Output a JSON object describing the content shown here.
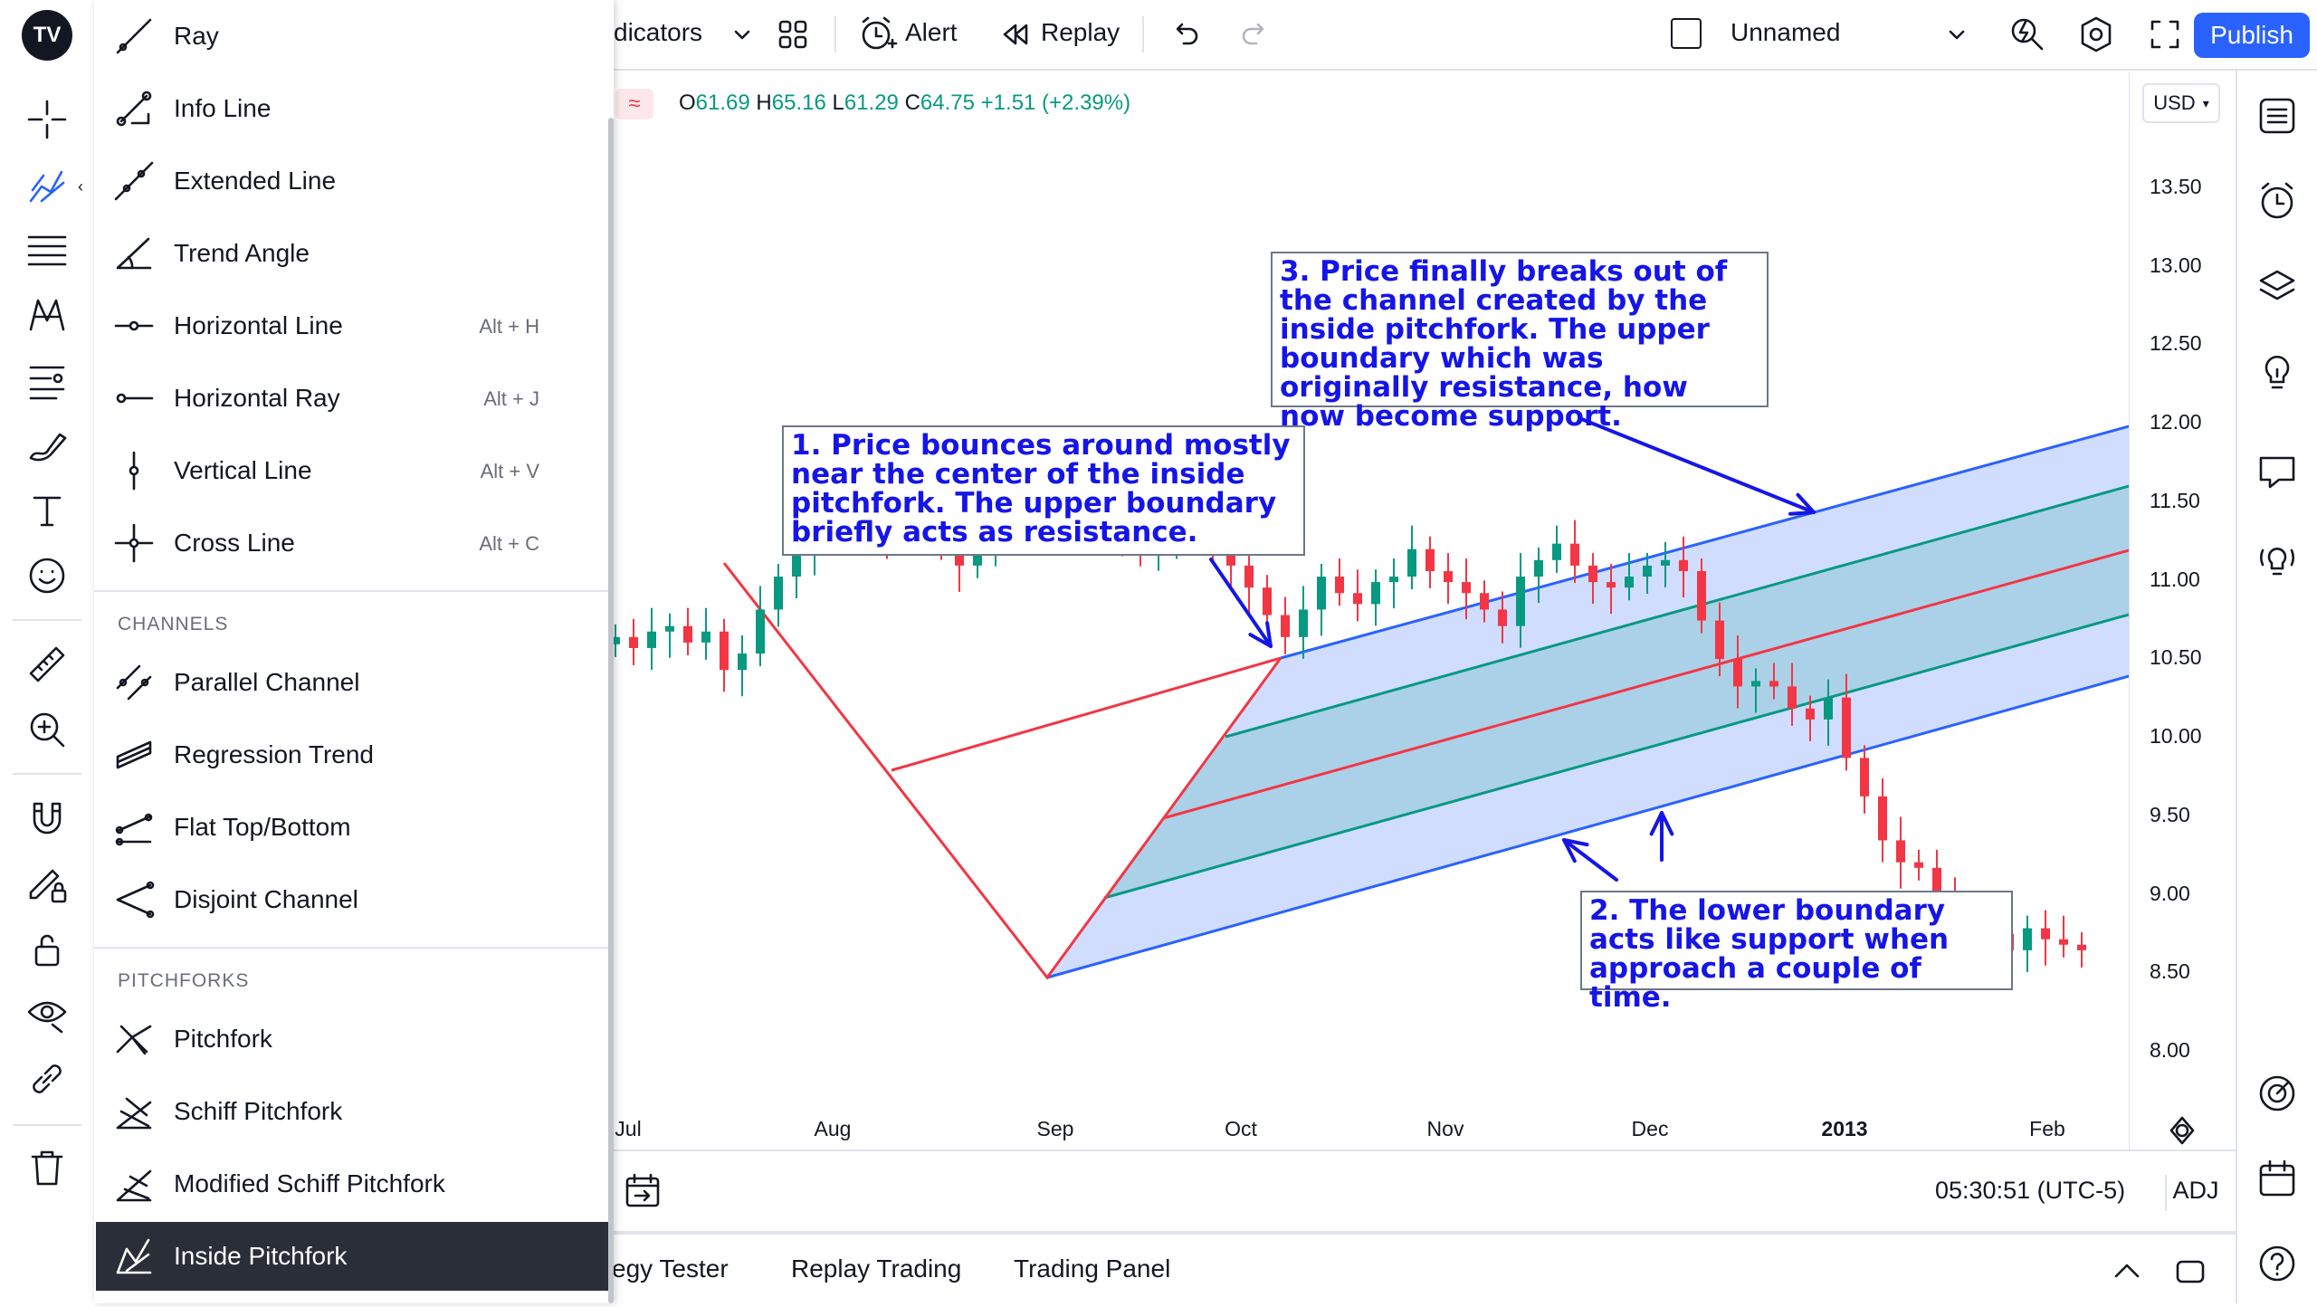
{
  "top_bar": {
    "indicators_label": "dicators",
    "alert_label": "Alert",
    "replay_label": "Replay",
    "layout_name": "Unnamed",
    "publish_label": "Publish"
  },
  "legend": {
    "o_key": "O",
    "o_val": "61.69",
    "h_key": "H",
    "h_val": "65.16",
    "l_key": "L",
    "l_val": "61.29",
    "c_key": "C",
    "c_val": "64.75",
    "change": "+1.51 (+2.39%)"
  },
  "currency": "USD",
  "colors": {
    "up": "#089981",
    "down": "#f23645",
    "accent": "#2962ff",
    "annotation": "#1515e8"
  },
  "price_axis": [
    "13.50",
    "13.00",
    "12.50",
    "12.00",
    "11.50",
    "11.00",
    "10.50",
    "10.00",
    "9.50",
    "9.00",
    "8.50",
    "8.00"
  ],
  "time_axis": [
    "Jul",
    "Aug",
    "Sep",
    "Oct",
    "Nov",
    "Dec",
    "2013",
    "Feb"
  ],
  "annotations": {
    "note1": "1. Price bounces around mostly near the center of the inside pitchfork. The upper boundary briefly acts as resistance.",
    "note2": "2. The lower boundary acts like support when approach a couple of time.",
    "note3": "3. Price finally breaks out of the channel created by the inside pitchfork. The upper boundary which was originally resistance, how now become support."
  },
  "bottom_bar": {
    "time": "05:30:51 (UTC-5)",
    "adj": "ADJ"
  },
  "bottom_panel": {
    "tabs": [
      "egy Tester",
      "Replay Trading",
      "Trading Panel"
    ]
  },
  "dropdown": {
    "lines": [
      {
        "label": "Ray",
        "shortcut": ""
      },
      {
        "label": "Info Line",
        "shortcut": ""
      },
      {
        "label": "Extended Line",
        "shortcut": ""
      },
      {
        "label": "Trend Angle",
        "shortcut": ""
      },
      {
        "label": "Horizontal Line",
        "shortcut": "Alt + H"
      },
      {
        "label": "Horizontal Ray",
        "shortcut": "Alt + J"
      },
      {
        "label": "Vertical Line",
        "shortcut": "Alt + V"
      },
      {
        "label": "Cross Line",
        "shortcut": "Alt + C"
      }
    ],
    "channels_heading": "CHANNELS",
    "channels": [
      {
        "label": "Parallel Channel"
      },
      {
        "label": "Regression Trend"
      },
      {
        "label": "Flat Top/Bottom"
      },
      {
        "label": "Disjoint Channel"
      }
    ],
    "pitchforks_heading": "PITCHFORKS",
    "pitchforks": [
      {
        "label": "Pitchfork"
      },
      {
        "label": "Schiff Pitchfork"
      },
      {
        "label": "Modified Schiff Pitchfork"
      },
      {
        "label": "Inside Pitchfork"
      }
    ]
  }
}
